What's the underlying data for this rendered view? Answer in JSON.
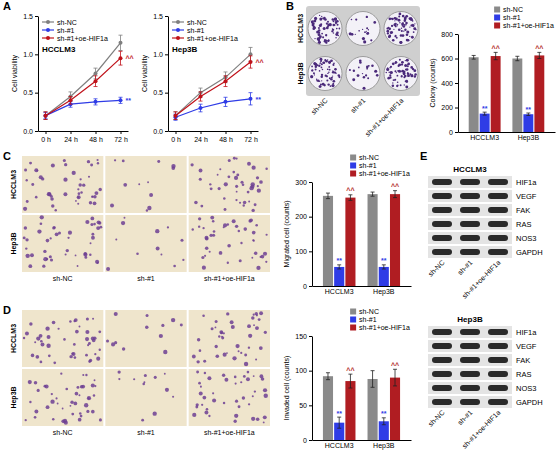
{
  "figure": {
    "panel_letters": [
      "A",
      "B",
      "C",
      "D",
      "E"
    ],
    "images": {
      "B": {
        "rows": [
          "HCCLM3",
          "Hep3B"
        ],
        "columns": [
          "sh-NC",
          "sh-#1",
          "sh-#1+oe-HIF1a"
        ]
      },
      "C": {
        "rows": [
          "HCCLM3",
          "Hep3B"
        ],
        "columns": [
          "sh-NC",
          "sh-#1",
          "sh-#1+oe-HIF1a"
        ]
      },
      "D": {
        "rows": [
          "HCCLM3",
          "Hep3B"
        ],
        "columns": [
          "sh-NC",
          "sh-#1",
          "sh-#1+oe-HIF1a"
        ]
      }
    },
    "blots": [
      {
        "title": "HCCLM3",
        "proteins": [
          "HIF1a",
          "VEGF",
          "FAK",
          "RAS",
          "NOS3",
          "GAPDH"
        ],
        "lanes": [
          "sh-NC",
          "sh-#1",
          "sh-#1+oe-HIF1a"
        ]
      },
      {
        "title": "Hep3B",
        "proteins": [
          "HIF1a",
          "VEGF",
          "FAK",
          "RAS",
          "NOS3",
          "GAPDH"
        ],
        "lanes": [
          "sh-NC",
          "sh-#1",
          "sh-#1+oe-HIF1a"
        ]
      }
    ]
  },
  "chart_data": [
    {
      "type": "line",
      "title": "HCCLM3",
      "y_label": "Cell viability",
      "categories": [
        "0 h",
        "24 h",
        "48 h",
        "72 h"
      ],
      "ylim": [
        0,
        1.5
      ],
      "yticks": [
        {
          "value": 0,
          "label": "0.0"
        },
        0.5,
        {
          "value": 1,
          "label": "1.0"
        },
        1.5
      ],
      "legend": "top-left",
      "series": [
        {
          "name": "sh-NC",
          "color": "#7f7f7f",
          "marker": "circle",
          "values": [
            0.2,
            0.45,
            0.75,
            1.15
          ],
          "errors": [
            0.05,
            0.06,
            0.07,
            0.1
          ]
        },
        {
          "name": "sh-#1",
          "color": "#2f3ce6",
          "marker": "circle",
          "values": [
            0.2,
            0.35,
            0.38,
            0.4
          ],
          "errors": [
            0.04,
            0.04,
            0.04,
            0.04
          ],
          "annotation": "**"
        },
        {
          "name": "sh-#1+oe-HIF1a",
          "color": "#c0121a",
          "marker": "circle",
          "values": [
            0.2,
            0.4,
            0.65,
            0.95
          ],
          "errors": [
            0.05,
            0.05,
            0.07,
            0.09
          ],
          "annotation": "^^"
        }
      ]
    },
    {
      "type": "line",
      "title": "Hep3B",
      "y_label": "Cell viability",
      "categories": [
        "0 h",
        "24 h",
        "48 h",
        "72 h"
      ],
      "ylim": [
        0,
        1.5
      ],
      "yticks": [
        {
          "value": 0,
          "label": "0.0"
        },
        0.5,
        {
          "value": 1,
          "label": "1.0"
        },
        1.5
      ],
      "legend": "top-left",
      "series": [
        {
          "name": "sh-NC",
          "color": "#7f7f7f",
          "marker": "circle",
          "values": [
            0.2,
            0.5,
            0.7,
            1.0
          ],
          "errors": [
            0.05,
            0.06,
            0.07,
            0.09
          ]
        },
        {
          "name": "sh-#1",
          "color": "#2f3ce6",
          "marker": "circle",
          "values": [
            0.18,
            0.3,
            0.38,
            0.42
          ],
          "errors": [
            0.04,
            0.05,
            0.06,
            0.08
          ],
          "annotation": "**"
        },
        {
          "name": "sh-#1+oe-HIF1a",
          "color": "#c0121a",
          "marker": "circle",
          "values": [
            0.2,
            0.45,
            0.65,
            0.9
          ],
          "errors": [
            0.05,
            0.06,
            0.07,
            0.08
          ],
          "annotation": "^^"
        }
      ]
    },
    {
      "type": "bar",
      "y_label": "Colony (counts)",
      "categories": [
        "HCCLM3",
        "Hep3B"
      ],
      "ylim": [
        0,
        800
      ],
      "yticks": [
        0,
        200,
        400,
        600,
        800
      ],
      "legend": "top",
      "series": [
        {
          "name": "sh-NC",
          "color": "#8a8a8a",
          "values": [
            610,
            600
          ],
          "errors": [
            15,
            18
          ]
        },
        {
          "name": "sh-#1",
          "color": "#2f3ce6",
          "values": [
            150,
            145
          ],
          "errors": [
            12,
            10
          ],
          "annotations": [
            "**",
            "**"
          ]
        },
        {
          "name": "sh-#1+oe-HIF1a",
          "color": "#b01d22",
          "values": [
            620,
            625
          ],
          "errors": [
            30,
            25
          ],
          "annotations": [
            "^^",
            "^^"
          ]
        }
      ]
    },
    {
      "type": "bar",
      "y_label": "Migrated cell (counts)",
      "categories": [
        "HCCLM3",
        "Hep3B"
      ],
      "ylim": [
        0,
        300
      ],
      "yticks": [
        0,
        100,
        200,
        300
      ],
      "legend": "top",
      "series": [
        {
          "name": "sh-NC",
          "color": "#8a8a8a",
          "values": [
            260,
            265
          ],
          "errors": [
            8,
            6
          ]
        },
        {
          "name": "sh-#1",
          "color": "#2f3ce6",
          "values": [
            55,
            55
          ],
          "errors": [
            6,
            6
          ],
          "annotations": [
            "**",
            "**"
          ]
        },
        {
          "name": "sh-#1+oe-HIF1a",
          "color": "#b01d22",
          "values": [
            255,
            265
          ],
          "errors": [
            8,
            10
          ],
          "annotations": [
            "^^",
            "^^"
          ]
        }
      ]
    },
    {
      "type": "bar",
      "y_label": "Invaded cell (counts)",
      "categories": [
        "HCCLM3",
        "Hep3B"
      ],
      "ylim": [
        0,
        150
      ],
      "yticks": [
        0,
        50,
        100,
        150
      ],
      "legend": "top",
      "series": [
        {
          "name": "sh-NC",
          "color": "#8a8a8a",
          "values": [
            92,
            88
          ],
          "errors": [
            5,
            12
          ]
        },
        {
          "name": "sh-#1",
          "color": "#2f3ce6",
          "values": [
            25,
            27
          ],
          "errors": [
            8,
            5
          ],
          "annotations": [
            "**",
            "**"
          ]
        },
        {
          "name": "sh-#1+oe-HIF1a",
          "color": "#b01d22",
          "values": [
            85,
            90
          ],
          "errors": [
            10,
            12
          ],
          "annotations": [
            "^^",
            "^^"
          ]
        }
      ]
    }
  ]
}
